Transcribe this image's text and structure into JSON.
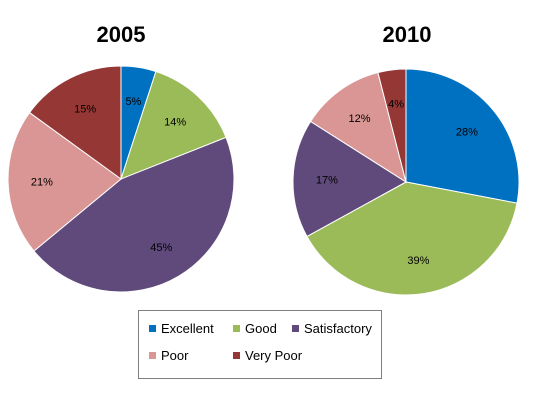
{
  "chart_data": [
    {
      "type": "pie",
      "title": "2005",
      "categories": [
        "Excellent",
        "Good",
        "Satisfactory",
        "Poor",
        "Very Poor"
      ],
      "values": [
        5,
        14,
        45,
        21,
        15
      ],
      "labels": [
        "5%",
        "14%",
        "45%",
        "21%",
        "15%"
      ]
    },
    {
      "type": "pie",
      "title": "2010",
      "categories": [
        "Excellent",
        "Good",
        "Satisfactory",
        "Poor",
        "Very Poor"
      ],
      "values": [
        28,
        39,
        17,
        12,
        4
      ],
      "labels": [
        "28%",
        "39%",
        "17%",
        "12%",
        "4%"
      ]
    }
  ],
  "legend": {
    "placement": "bottom",
    "items": [
      {
        "label": "Excellent",
        "color": "#0070C0"
      },
      {
        "label": "Good",
        "color": "#9BBB59"
      },
      {
        "label": "Satisfactory",
        "color": "#604A7B"
      },
      {
        "label": "Poor",
        "color": "#D99694"
      },
      {
        "label": "Very Poor",
        "color": "#953735"
      }
    ]
  }
}
